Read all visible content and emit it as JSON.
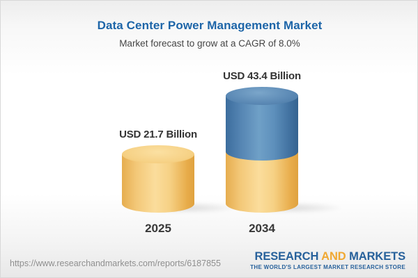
{
  "header": {
    "title": "Data Center Power Management Market",
    "subtitle": "Market forecast to grow at a CAGR of 8.0%"
  },
  "chart_data": {
    "type": "bar",
    "title": "Data Center Power Management Market",
    "subtitle": "Market forecast to grow at a CAGR of 8.0%",
    "categories": [
      "2025",
      "2034"
    ],
    "values": [
      21.7,
      43.4
    ],
    "unit": "USD Billion",
    "value_labels": [
      "USD 21.7 Billion",
      "USD 43.4 Billion"
    ],
    "cagr_pct": 8.0,
    "bar_style": "3d-cylinder",
    "stacked_detail": {
      "bar_2034_base": 21.7,
      "bar_2034_growth": 21.7
    },
    "legend": "none",
    "grid": false,
    "axes": "none",
    "colors": {
      "title_blue": "#1d65a8",
      "base_segment_gold": "#f5ce82",
      "growth_segment_blue": "#5585b2",
      "label_text": "#333333"
    }
  },
  "footer": {
    "url": "https://www.researchandmarkets.com/reports/6187855",
    "logo": {
      "word1": "RESEARCH",
      "word2": "AND",
      "word3": "MARKETS",
      "tagline": "THE WORLD'S LARGEST MARKET RESEARCH STORE",
      "colors": {
        "blue": "#27619b",
        "gold": "#f0a832"
      }
    }
  }
}
